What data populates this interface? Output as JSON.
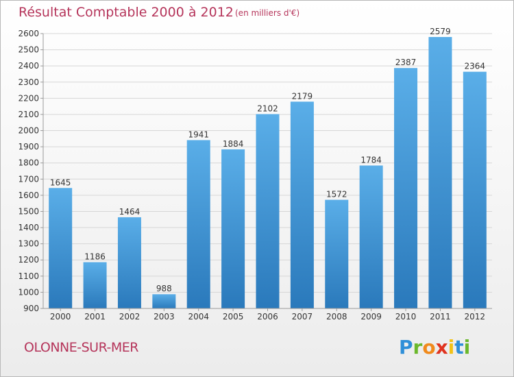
{
  "title": "Résultat Comptable 2000 à 2012",
  "subtitle": "(en milliers d'€)",
  "city": "OLONNE-SUR-MER",
  "logo": {
    "p": "P",
    "r": "r",
    "o": "o",
    "x": "x",
    "i1": "i",
    "t": "t",
    "i2": "i"
  },
  "colors": {
    "title": "#b5345a",
    "bar_top": "#5aaee8",
    "bar_bottom": "#2a79bb"
  },
  "chart_data": {
    "type": "bar",
    "categories": [
      "2000",
      "2001",
      "2002",
      "2003",
      "2004",
      "2005",
      "2006",
      "2007",
      "2008",
      "2009",
      "2010",
      "2011",
      "2012"
    ],
    "values": [
      1645,
      1186,
      1464,
      988,
      1941,
      1884,
      2102,
      2179,
      1572,
      1784,
      2387,
      2579,
      2364
    ],
    "ylim": [
      900,
      2600
    ],
    "yticks": [
      900,
      1000,
      1100,
      1200,
      1300,
      1400,
      1500,
      1600,
      1700,
      1800,
      1900,
      2000,
      2100,
      2200,
      2300,
      2400,
      2500,
      2600
    ],
    "grid": true,
    "data_labels": true
  }
}
